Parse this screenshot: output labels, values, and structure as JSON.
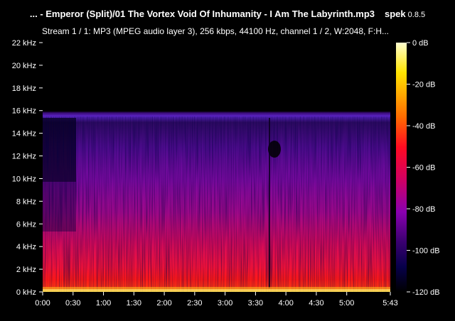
{
  "window": {
    "title": "... - Emperor (Split)/01 The Vortex Void Of Inhumanity - I  Am The Labyrinth.mp3",
    "app_name": "spek",
    "app_version": "0.8.5"
  },
  "stream_info": "Stream 1 / 1: MP3 (MPEG audio layer 3), 256 kbps, 44100 Hz, channel 1 / 2, W:2048, F:H...",
  "spectrogram": {
    "frequency_ticks": [
      "22 kHz",
      "20 kHz",
      "18 kHz",
      "16 kHz",
      "14 kHz",
      "12 kHz",
      "10 kHz",
      "8 kHz",
      "6 kHz",
      "4 kHz",
      "2 kHz",
      "0 kHz"
    ],
    "time_ticks": [
      "0:00",
      "0:30",
      "1:00",
      "1:30",
      "2:00",
      "2:30",
      "3:00",
      "3:30",
      "4:00",
      "4:30",
      "5:00",
      "5:43"
    ],
    "time_tick_seconds": [
      0,
      30,
      60,
      90,
      120,
      150,
      180,
      210,
      240,
      270,
      300,
      343
    ],
    "duration_seconds": 343,
    "max_khz": 22,
    "lowpass_cutoff_khz": 15.6
  },
  "colorbar": {
    "ticks": [
      "0 dB",
      "-20 dB",
      "-40 dB",
      "-60 dB",
      "-80 dB",
      "-100 dB",
      "-120 dB"
    ],
    "gradient_colors": [
      "#ffffd0",
      "#ffe400",
      "#ff6a00",
      "#ff0a22",
      "#d00063",
      "#8a00b0",
      "#3a0070",
      "#07004a",
      "#000000"
    ]
  }
}
